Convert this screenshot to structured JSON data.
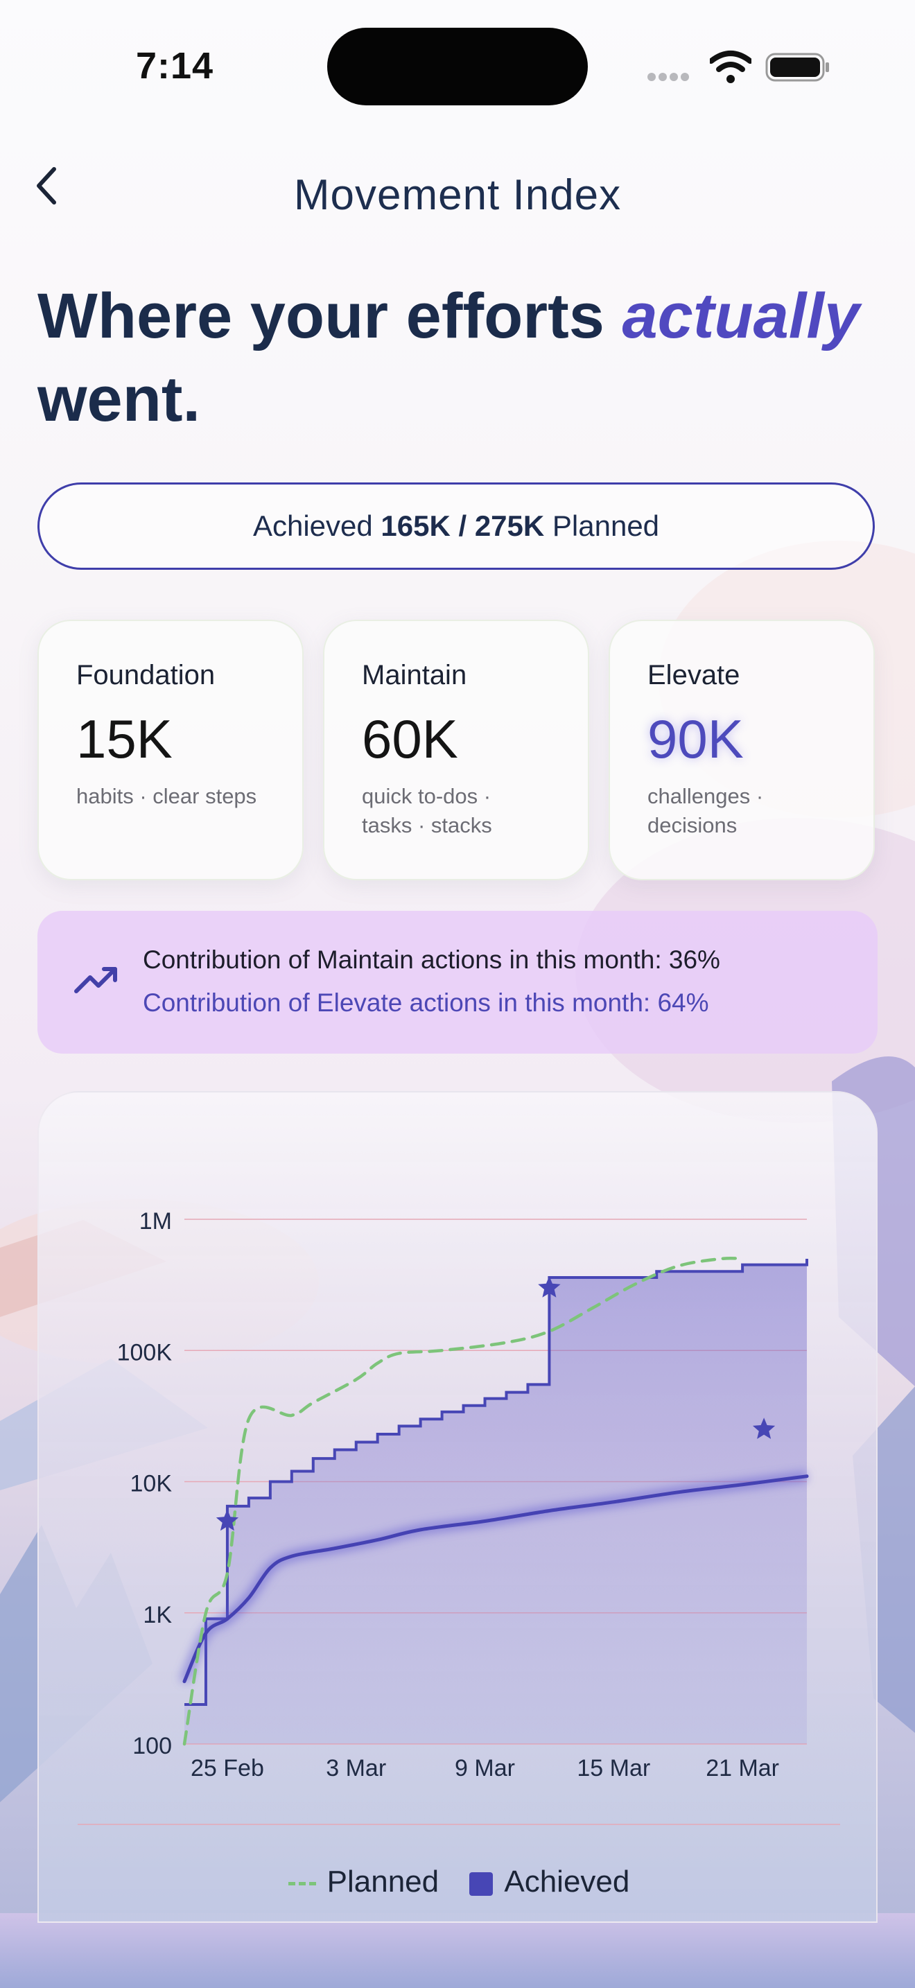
{
  "status_bar": {
    "time": "7:14"
  },
  "header": {
    "title": "Movement Index",
    "back_icon": "chevron-left-icon"
  },
  "headline": {
    "part1": "Where your efforts ",
    "emphasis": "actually",
    "part2": " went."
  },
  "summary": {
    "prefix": "Achieved ",
    "achieved": "165K",
    "separator": " / ",
    "planned": "275K",
    "suffix": " Planned"
  },
  "cards": [
    {
      "title": "Foundation",
      "value": "15K",
      "sub": "habits · clear steps"
    },
    {
      "title": "Maintain",
      "value": "60K",
      "sub_line1": "quick to-dos ·",
      "sub_line2": "tasks · stacks"
    },
    {
      "title": "Elevate",
      "value": "90K",
      "sub_line1": "challenges ·",
      "sub_line2": "decisions"
    }
  ],
  "insight": {
    "icon": "trending-up-icon",
    "line1": "Contribution of Maintain actions in this month: 36%",
    "line2": "Contribution of Elevate actions in this month: 64%"
  },
  "colors": {
    "accent": "#4746b5",
    "planned": "#7dc47a",
    "headline": "#1b2c4b",
    "insight_bg": "#e8cdf8"
  },
  "chart_data": {
    "type": "line",
    "y_scale": "log",
    "ylim": [
      100,
      1000000
    ],
    "y_ticks": [
      "100",
      "1K",
      "10K",
      "100K",
      "1M"
    ],
    "x_ticks": [
      "25 Feb",
      "3 Mar",
      "9 Mar",
      "15 Mar",
      "21 Mar"
    ],
    "legend": [
      "Planned",
      "Achieved"
    ],
    "series": [
      {
        "name": "Planned",
        "style": "dashed",
        "points": [
          [
            "23 Feb",
            100
          ],
          [
            "24 Feb",
            1000
          ],
          [
            "25 Feb",
            2000
          ],
          [
            "26 Feb",
            30000
          ],
          [
            "28 Feb",
            32000
          ],
          [
            "1 Mar",
            40000
          ],
          [
            "3 Mar",
            60000
          ],
          [
            "4 Mar",
            80000
          ],
          [
            "5 Mar",
            95000
          ],
          [
            "7 Mar",
            100000
          ],
          [
            "10 Mar",
            115000
          ],
          [
            "12 Mar",
            140000
          ],
          [
            "14 Mar",
            210000
          ],
          [
            "16 Mar",
            320000
          ],
          [
            "18 Mar",
            440000
          ],
          [
            "20 Mar",
            500000
          ],
          [
            "21 Mar",
            500000
          ]
        ]
      },
      {
        "name": "Achieved",
        "style": "step-area",
        "points": [
          [
            "23 Feb",
            200
          ],
          [
            "24 Feb",
            900
          ],
          [
            "25 Feb",
            950
          ],
          [
            "25 Feb ",
            6500
          ],
          [
            "26 Feb",
            7500
          ],
          [
            "27 Feb",
            10000
          ],
          [
            "28 Feb",
            12000
          ],
          [
            "1 Mar",
            15000
          ],
          [
            "2 Mar",
            17500
          ],
          [
            "3 Mar",
            20000
          ],
          [
            "4 Mar",
            23000
          ],
          [
            "5 Mar",
            26500
          ],
          [
            "6 Mar",
            30000
          ],
          [
            "7 Mar",
            34000
          ],
          [
            "8 Mar",
            38000
          ],
          [
            "9 Mar",
            43000
          ],
          [
            "10 Mar",
            48000
          ],
          [
            "11 Mar",
            55000
          ],
          [
            "12 Mar",
            60000
          ],
          [
            "12 Mar ",
            360000
          ],
          [
            "17 Mar",
            400000
          ],
          [
            "21 Mar",
            450000
          ],
          [
            "24 Mar",
            500000
          ]
        ]
      },
      {
        "name": "Achieved trend",
        "style": "solid-glow",
        "points": [
          [
            "23 Feb",
            300
          ],
          [
            "24 Feb",
            700
          ],
          [
            "25 Feb",
            900
          ],
          [
            "26 Feb",
            1300
          ],
          [
            "27 Feb",
            2200
          ],
          [
            "28 Feb",
            2700
          ],
          [
            "2 Mar",
            3100
          ],
          [
            "4 Mar",
            3600
          ],
          [
            "6 Mar",
            4300
          ],
          [
            "9 Mar",
            5000
          ],
          [
            "12 Mar",
            6000
          ],
          [
            "15 Mar",
            7000
          ],
          [
            "18 Mar",
            8300
          ],
          [
            "21 Mar",
            9500
          ],
          [
            "24 Mar",
            11000
          ]
        ]
      }
    ],
    "markers": [
      [
        "25 Feb",
        5000
      ],
      [
        "12 Mar",
        300000
      ],
      [
        "22 Mar",
        25000
      ]
    ]
  }
}
